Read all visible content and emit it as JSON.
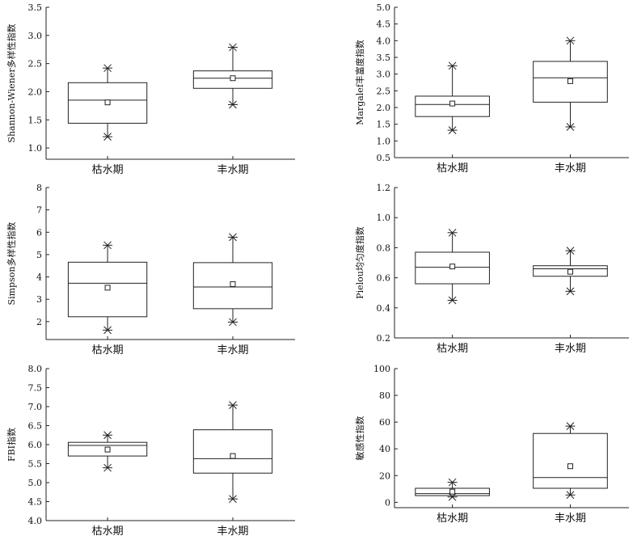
{
  "chart_data": [
    {
      "type": "box",
      "ylabel": "Shannon-Wiener多样性指数",
      "ylim": [
        0.8,
        3.5
      ],
      "yticks": [
        "1.0",
        "1.5",
        "2.0",
        "2.5",
        "3.0",
        "3.5"
      ],
      "categories": [
        "枯水期",
        "丰水期"
      ],
      "boxes": [
        {
          "min": 1.2,
          "q1": 1.44,
          "median": 1.85,
          "q3": 2.16,
          "max": 2.42,
          "mean": 1.81
        },
        {
          "min": 1.77,
          "q1": 2.06,
          "median": 2.24,
          "q3": 2.37,
          "max": 2.79,
          "mean": 2.24
        }
      ]
    },
    {
      "type": "box",
      "ylabel": "Margalef丰富度指数",
      "ylim": [
        0.5,
        5.0
      ],
      "yticks": [
        "0.5",
        "1.0",
        "1.5",
        "2.0",
        "2.5",
        "3.0",
        "3.5",
        "4.0",
        "4.5",
        "5.0"
      ],
      "categories": [
        "枯水期",
        "丰水期"
      ],
      "boxes": [
        {
          "min": 1.32,
          "q1": 1.73,
          "median": 2.09,
          "q3": 2.34,
          "max": 3.25,
          "mean": 2.12
        },
        {
          "min": 1.42,
          "q1": 2.16,
          "median": 2.89,
          "q3": 3.38,
          "max": 4.0,
          "mean": 2.79
        }
      ]
    },
    {
      "type": "box",
      "ylabel": "Simpson多样性指数",
      "ylim": [
        1.2,
        8.0
      ],
      "yticks": [
        "2",
        "3",
        "4",
        "5",
        "6",
        "7",
        "8"
      ],
      "categories": [
        "枯水期",
        "丰水期"
      ],
      "boxes": [
        {
          "min": 1.62,
          "q1": 2.22,
          "median": 3.72,
          "q3": 4.66,
          "max": 5.42,
          "mean": 3.52
        },
        {
          "min": 1.98,
          "q1": 2.58,
          "median": 3.55,
          "q3": 4.64,
          "max": 5.78,
          "mean": 3.68
        }
      ]
    },
    {
      "type": "box",
      "ylabel": "Pielou均匀度指数",
      "ylim": [
        0.2,
        1.2
      ],
      "yticks": [
        "0.2",
        "0.4",
        "0.6",
        "0.8",
        "1.0",
        "1.2"
      ],
      "categories": [
        "枯水期",
        "丰水期"
      ],
      "boxes": [
        {
          "min": 0.45,
          "q1": 0.56,
          "median": 0.67,
          "q3": 0.77,
          "max": 0.9,
          "mean": 0.675
        },
        {
          "min": 0.51,
          "q1": 0.61,
          "median": 0.66,
          "q3": 0.68,
          "max": 0.78,
          "mean": 0.64
        }
      ]
    },
    {
      "type": "box",
      "ylabel": "FBI指数",
      "ylim": [
        4.0,
        8.0
      ],
      "yticks": [
        "4.0",
        "4.5",
        "5.0",
        "5.5",
        "6.0",
        "6.5",
        "7.0",
        "7.5",
        "8.0"
      ],
      "categories": [
        "枯水期",
        "丰水期"
      ],
      "boxes": [
        {
          "min": 5.39,
          "q1": 5.7,
          "median": 5.98,
          "q3": 6.06,
          "max": 6.25,
          "mean": 5.87
        },
        {
          "min": 4.57,
          "q1": 5.25,
          "median": 5.63,
          "q3": 6.39,
          "max": 7.04,
          "mean": 5.7
        }
      ]
    },
    {
      "type": "box",
      "ylabel": "敏感性指数",
      "ylim": [
        -4,
        100
      ],
      "yticks": [
        "0",
        "20",
        "40",
        "60",
        "80",
        "100"
      ],
      "categories": [
        "枯水期",
        "丰水期"
      ],
      "boxes": [
        {
          "min": 4,
          "q1": 5,
          "median": 6.5,
          "q3": 10.5,
          "max": 15,
          "mean": 8
        },
        {
          "min": 5.5,
          "q1": 10.5,
          "median": 18.5,
          "q3": 51.5,
          "max": 57,
          "mean": 27
        }
      ]
    }
  ]
}
